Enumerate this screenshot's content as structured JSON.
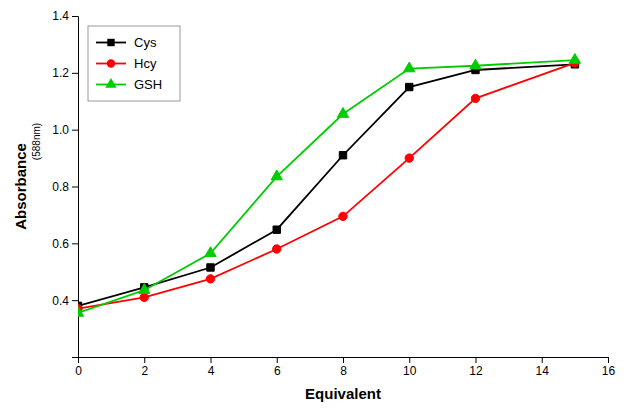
{
  "chart_data": {
    "type": "line",
    "xlabel": "Equivalent",
    "ylabel": "Absorbance",
    "annotations": [
      "(588nm)"
    ],
    "x": [
      0,
      2,
      4,
      6,
      8,
      10,
      12,
      15
    ],
    "series": [
      {
        "name": "Cys",
        "color": "#000000",
        "marker": "square",
        "values": [
          0.38,
          0.445,
          0.515,
          0.648,
          0.91,
          1.15,
          1.21,
          1.23
        ]
      },
      {
        "name": "Hcy",
        "color": "#ff0000",
        "marker": "circle",
        "values": [
          0.37,
          0.41,
          0.475,
          0.58,
          0.695,
          0.9,
          1.11,
          1.235
        ]
      },
      {
        "name": "GSH",
        "color": "#00cc00",
        "marker": "triangle",
        "values": [
          0.355,
          0.435,
          0.565,
          0.835,
          1.055,
          1.215,
          1.225,
          1.245
        ]
      }
    ],
    "xlim": [
      0,
      16
    ],
    "xticks": [
      0,
      2,
      4,
      6,
      8,
      10,
      12,
      14,
      16
    ],
    "ylim": [
      0.2,
      1.4
    ],
    "yticks": [
      0.4,
      0.6,
      0.8,
      {
        "value": 1.0,
        "label": "1.0"
      },
      1.2,
      1.4
    ],
    "grid": false,
    "legend": "upper left"
  }
}
